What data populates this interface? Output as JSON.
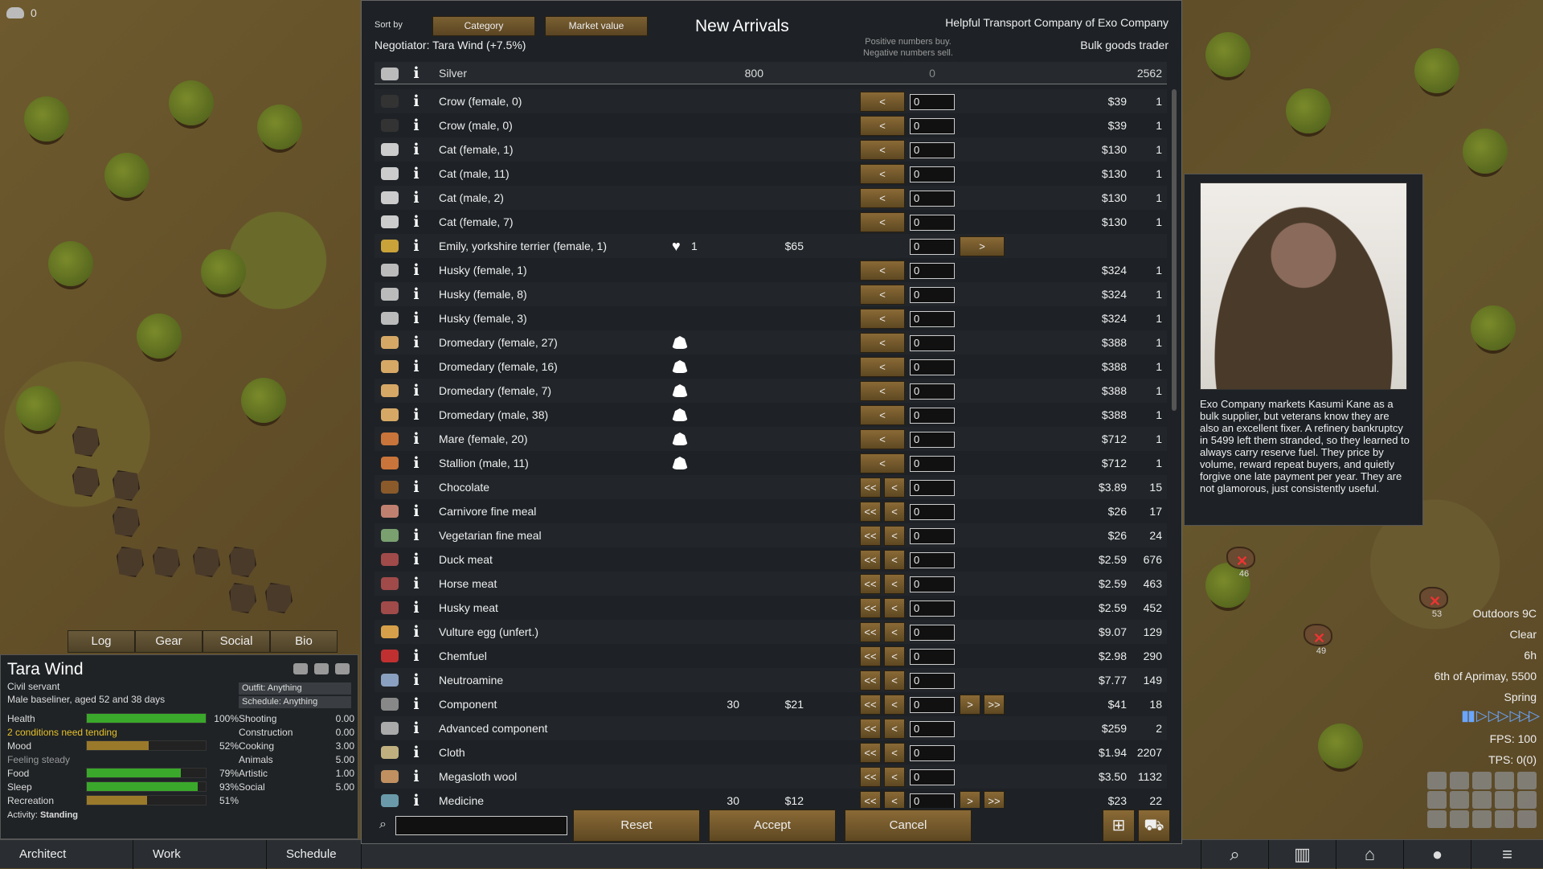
{
  "hud": {
    "silver_count": "0"
  },
  "pawn": {
    "tabs": [
      "Log",
      "Gear",
      "Social",
      "Bio"
    ],
    "name": "Tara Wind",
    "title": "Civil servant",
    "desc": "Male baseliner, aged 52 and 38 days",
    "outfit": "Outfit: Anything",
    "schedule": "Schedule: Anything",
    "needs": [
      {
        "label": "Health",
        "value": "100%",
        "fill": 1.0,
        "color": "#3aa82a"
      },
      {
        "label": "2 conditions need tending",
        "value": "",
        "fill": 0,
        "color": "#3aa82a",
        "warn": true
      },
      {
        "label": "Mood",
        "value": "52%",
        "fill": 0.52,
        "color": "#9a7a2a"
      },
      {
        "label": "Feeling steady",
        "value": "",
        "fill": 0,
        "color": "#9a7a2a",
        "dim": true
      },
      {
        "label": "Food",
        "value": "79%",
        "fill": 0.79,
        "color": "#3aa82a"
      },
      {
        "label": "Sleep",
        "value": "93%",
        "fill": 0.93,
        "color": "#3aa82a"
      },
      {
        "label": "Recreation",
        "value": "51%",
        "fill": 0.51,
        "color": "#9a7a2a"
      }
    ],
    "skills": [
      {
        "label": "Shooting",
        "value": "0.00"
      },
      {
        "label": "Construction",
        "value": "0.00"
      },
      {
        "label": "Cooking",
        "value": "3.00"
      },
      {
        "label": "Animals",
        "value": "5.00"
      },
      {
        "label": "Artistic",
        "value": "1.00"
      },
      {
        "label": "Social",
        "value": "5.00"
      }
    ],
    "activity_label": "Activity:",
    "activity": "Standing"
  },
  "mainbar": {
    "architect": "Architect",
    "work": "Work",
    "schedule": "Schedule"
  },
  "status": {
    "outdoors": "Outdoors 9C",
    "weather": "Clear",
    "hour": "6h",
    "date": "6th of Aprimay, 5500",
    "season": "Spring",
    "fps": "FPS: 100",
    "tps": "TPS: 0(0)"
  },
  "map_animals": [
    {
      "num": "46"
    },
    {
      "num": "53"
    },
    {
      "num": "49"
    }
  ],
  "trade": {
    "sort_label": "Sort by",
    "sort_1": "Category",
    "sort_2": "Market value",
    "title": "New Arrivals",
    "negotiator": "Negotiator: Tara Wind (+7.5%)",
    "trader": "Helpful Transport Company of Exo Company",
    "trader_kind": "Bulk goods trader",
    "hint_1": "Positive numbers buy.",
    "hint_2": "Negative numbers sell.",
    "silver": {
      "name": "Silver",
      "colony": "800",
      "amount": "0",
      "trader": "2562"
    },
    "reset": "Reset",
    "accept": "Accept",
    "cancel": "Cancel",
    "rows": [
      {
        "name": "Crow (female, 0)",
        "type": "animal",
        "icon": "#333",
        "price": "$39",
        "count": "1"
      },
      {
        "name": "Crow (male, 0)",
        "type": "animal",
        "icon": "#333",
        "price": "$39",
        "count": "1"
      },
      {
        "name": "Cat (female, 1)",
        "type": "animal",
        "icon": "#ccc",
        "price": "$130",
        "count": "1"
      },
      {
        "name": "Cat (male, 11)",
        "type": "animal",
        "icon": "#ccc",
        "price": "$130",
        "count": "1"
      },
      {
        "name": "Cat (male, 2)",
        "type": "animal",
        "icon": "#ccc",
        "price": "$130",
        "count": "1"
      },
      {
        "name": "Cat (female, 7)",
        "type": "animal",
        "icon": "#ccc",
        "price": "$130",
        "count": "1"
      },
      {
        "name": "Emily, yorkshire terrier (female, 1)",
        "type": "colony_pet",
        "icon": "#c9a23a",
        "heart": "1",
        "oprice": "$65"
      },
      {
        "name": "Husky (female, 1)",
        "type": "animal",
        "icon": "#bbb",
        "price": "$324",
        "count": "1"
      },
      {
        "name": "Husky (female, 8)",
        "type": "animal",
        "icon": "#bbb",
        "price": "$324",
        "count": "1"
      },
      {
        "name": "Husky (female, 3)",
        "type": "animal",
        "icon": "#bbb",
        "price": "$324",
        "count": "1"
      },
      {
        "name": "Dromedary (female, 27)",
        "type": "animal",
        "bond": true,
        "icon": "#d6a866",
        "price": "$388",
        "count": "1"
      },
      {
        "name": "Dromedary (female, 16)",
        "type": "animal",
        "bond": true,
        "icon": "#d6a866",
        "price": "$388",
        "count": "1"
      },
      {
        "name": "Dromedary (female, 7)",
        "type": "animal",
        "bond": true,
        "icon": "#d6a866",
        "price": "$388",
        "count": "1"
      },
      {
        "name": "Dromedary (male, 38)",
        "type": "animal",
        "bond": true,
        "icon": "#d6a866",
        "price": "$388",
        "count": "1"
      },
      {
        "name": "Mare (female, 20)",
        "type": "animal",
        "bond": true,
        "icon": "#c8743a",
        "price": "$712",
        "count": "1"
      },
      {
        "name": "Stallion (male, 11)",
        "type": "animal",
        "bond": true,
        "icon": "#c8743a",
        "price": "$712",
        "count": "1"
      },
      {
        "name": "Chocolate",
        "type": "item",
        "icon": "#8a5a2a",
        "price": "$3.89",
        "count": "15"
      },
      {
        "name": "Carnivore fine meal",
        "type": "item",
        "icon": "#c08070",
        "price": "$26",
        "count": "17"
      },
      {
        "name": "Vegetarian fine meal",
        "type": "item",
        "icon": "#7aa070",
        "price": "$26",
        "count": "24"
      },
      {
        "name": "Duck meat",
        "type": "item",
        "icon": "#a04a4a",
        "price": "$2.59",
        "count": "676"
      },
      {
        "name": "Horse meat",
        "type": "item",
        "icon": "#a04a4a",
        "price": "$2.59",
        "count": "463"
      },
      {
        "name": "Husky meat",
        "type": "item",
        "icon": "#a04a4a",
        "price": "$2.59",
        "count": "452"
      },
      {
        "name": "Vulture egg (unfert.)",
        "type": "item",
        "icon": "#d6a04a",
        "price": "$9.07",
        "count": "129"
      },
      {
        "name": "Chemfuel",
        "type": "item",
        "icon": "#c03030",
        "price": "$2.98",
        "count": "290"
      },
      {
        "name": "Neutroamine",
        "type": "item",
        "icon": "#8aa0c0",
        "price": "$7.77",
        "count": "149"
      },
      {
        "name": "Component",
        "type": "both",
        "icon": "#888",
        "ocount": "30",
        "oprice": "$21",
        "price": "$41",
        "count": "18"
      },
      {
        "name": "Advanced component",
        "type": "item",
        "icon": "#aaa",
        "price": "$259",
        "count": "2"
      },
      {
        "name": "Cloth",
        "type": "item",
        "icon": "#c0b080",
        "price": "$1.94",
        "count": "2207"
      },
      {
        "name": "Megasloth wool",
        "type": "item",
        "icon": "#c09060",
        "price": "$3.50",
        "count": "1132"
      },
      {
        "name": "Medicine",
        "type": "both",
        "icon": "#6a9aaa",
        "ocount": "30",
        "oprice": "$12",
        "price": "$23",
        "count": "22"
      }
    ]
  },
  "trader_card": {
    "desc": "Exo Company markets Kasumi Kane as a bulk supplier, but veterans know they are also an excellent fixer. A refinery bankruptcy in 5499 left them stranded, so they learned to always carry reserve fuel. They price by volume, reward repeat buyers, and quietly forgive one late payment per year. They are not glamorous, just consistently useful."
  }
}
